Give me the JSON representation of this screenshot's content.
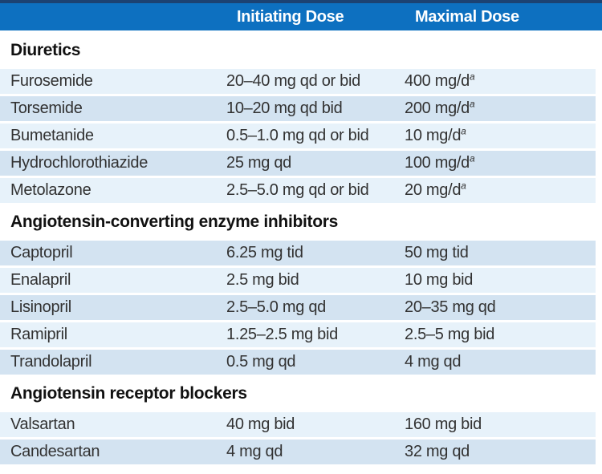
{
  "colors": {
    "top_rule_navy": "#1c4272",
    "header_blue": "#0d70c0",
    "header_text": "#ffffff",
    "row_light": "#e7f2fa",
    "row_dark": "#d3e3f1",
    "body_text": "#323232",
    "section_text": "#111111"
  },
  "header": {
    "col_initiating": "Initiating Dose",
    "col_maximal": "Maximal Dose"
  },
  "table": {
    "sections": [
      {
        "title": "Diuretics",
        "rows": [
          {
            "name": "Furosemide",
            "initiating": "20–40 mg qd or bid",
            "maximal": "400 mg/d",
            "footnote": "a"
          },
          {
            "name": "Torsemide",
            "initiating": "10–20 mg qd bid",
            "maximal": "200 mg/d",
            "footnote": "a"
          },
          {
            "name": "Bumetanide",
            "initiating": "0.5–1.0 mg qd or bid",
            "maximal": "10 mg/d",
            "footnote": "a"
          },
          {
            "name": "Hydrochlorothiazide",
            "initiating": "25 mg qd",
            "maximal": "100 mg/d",
            "footnote": "a"
          },
          {
            "name": "Metolazone",
            "initiating": "2.5–5.0 mg qd or bid",
            "maximal": "20 mg/d",
            "footnote": "a"
          }
        ]
      },
      {
        "title": "Angiotensin-converting enzyme inhibitors",
        "rows": [
          {
            "name": "Captopril",
            "initiating": "6.25 mg tid",
            "maximal": "50 mg tid",
            "footnote": ""
          },
          {
            "name": "Enalapril",
            "initiating": "2.5 mg bid",
            "maximal": "10 mg bid",
            "footnote": ""
          },
          {
            "name": "Lisinopril",
            "initiating": "2.5–5.0 mg qd",
            "maximal": "20–35 mg qd",
            "footnote": ""
          },
          {
            "name": "Ramipril",
            "initiating": "1.25–2.5 mg bid",
            "maximal": "2.5–5 mg bid",
            "footnote": ""
          },
          {
            "name": "Trandolapril",
            "initiating": "0.5 mg qd",
            "maximal": "4 mg qd",
            "footnote": ""
          }
        ]
      },
      {
        "title": "Angiotensin receptor blockers",
        "rows": [
          {
            "name": "Valsartan",
            "initiating": "40 mg bid",
            "maximal": "160 mg bid",
            "footnote": ""
          },
          {
            "name": "Candesartan",
            "initiating": "4 mg qd",
            "maximal": "32 mg qd",
            "footnote": ""
          }
        ]
      }
    ]
  }
}
